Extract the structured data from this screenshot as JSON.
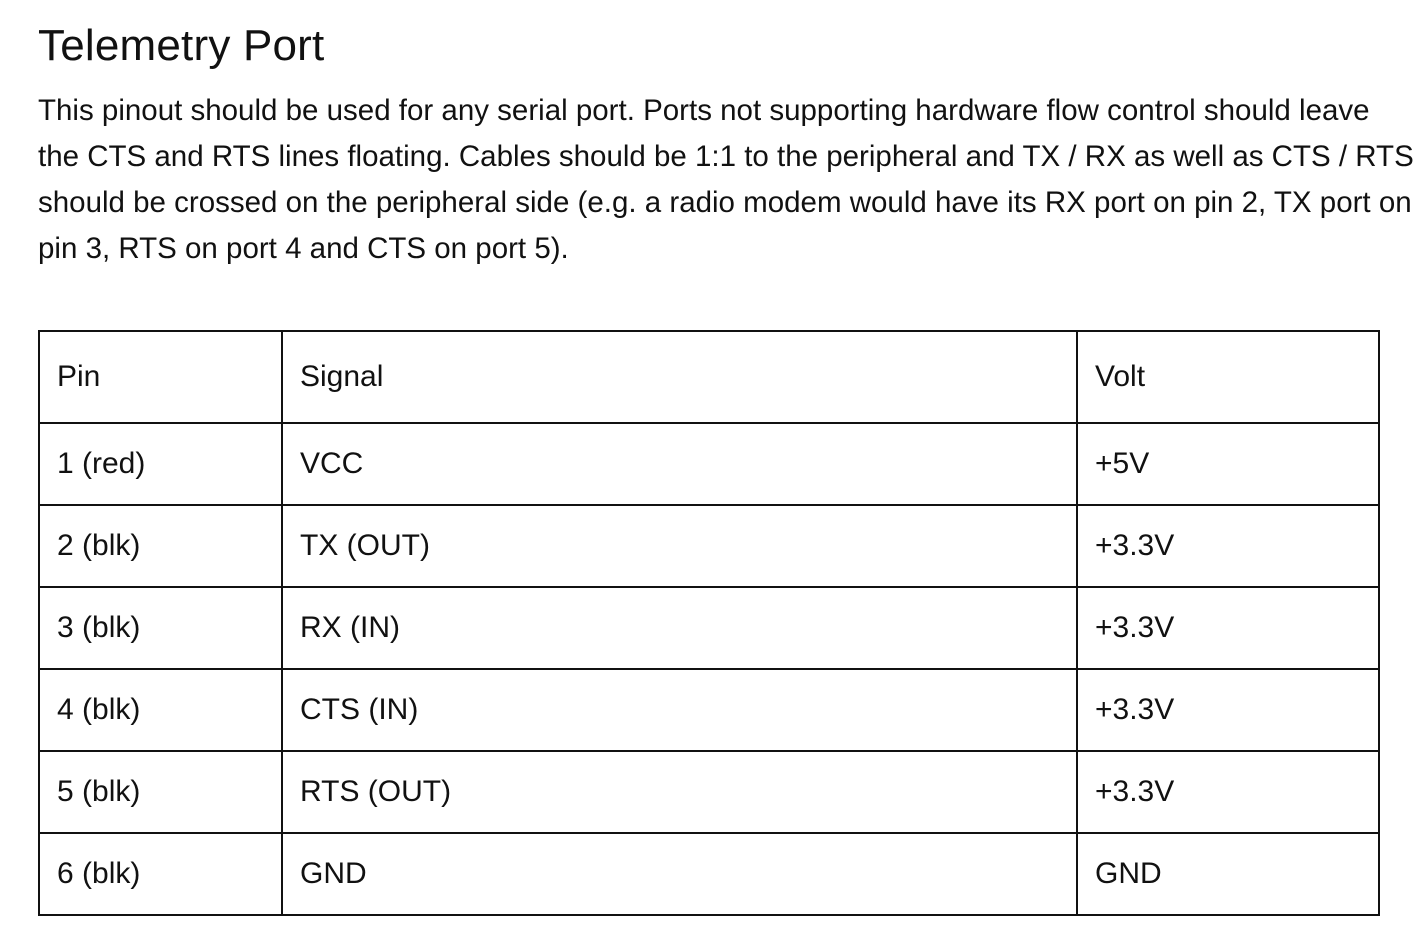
{
  "doc": {
    "title": "Telemetry Port",
    "intro": "This pinout should be used for any serial port. Ports not supporting hardware flow control should leave the CTS and RTS lines floating. Cables should be 1:1 to the peripheral and TX / RX as well as CTS / RTS should be crossed on the peripheral side (e.g. a radio modem would have its RX port on pin 2, TX port on pin 3, RTS on port 4 and CTS on port 5)."
  },
  "table": {
    "headers": [
      "Pin",
      "Signal",
      "Volt"
    ],
    "rows": [
      [
        "1 (red)",
        "VCC",
        "+5V"
      ],
      [
        "2 (blk)",
        "TX (OUT)",
        "+3.3V"
      ],
      [
        "3 (blk)",
        "RX (IN)",
        "+3.3V"
      ],
      [
        "4 (blk)",
        "CTS (IN)",
        "+3.3V"
      ],
      [
        "5 (blk)",
        "RTS (OUT)",
        "+3.3V"
      ],
      [
        "6 (blk)",
        "GND",
        "GND"
      ]
    ]
  }
}
